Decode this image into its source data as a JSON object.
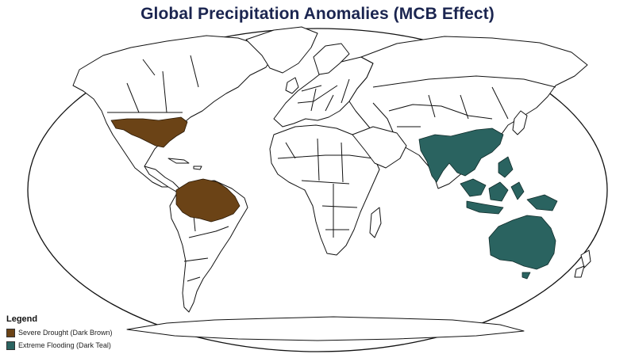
{
  "map": {
    "title": "Global Precipitation Anomalies (MCB Effect)",
    "projection": "robinson-like oval world map",
    "land_fill": "#ffffff",
    "border_color": "#111111",
    "regions": [
      {
        "name": "Southern United States",
        "category": "drought",
        "color": "#6b4316"
      },
      {
        "name": "Amazon Basin",
        "category": "drought",
        "color": "#6b4316"
      },
      {
        "name": "South & Southeast Asia",
        "category": "flooding",
        "color": "#2a6360"
      },
      {
        "name": "Maritime Southeast Asia",
        "category": "flooding",
        "color": "#2a6360"
      },
      {
        "name": "Australia",
        "category": "flooding",
        "color": "#2a6360"
      }
    ]
  },
  "legend": {
    "title": "Legend",
    "items": [
      {
        "label": "Severe Drought (Dark Brown)",
        "color": "#6b4316"
      },
      {
        "label": "Extreme Flooding (Dark Teal)",
        "color": "#2a6360"
      }
    ]
  }
}
